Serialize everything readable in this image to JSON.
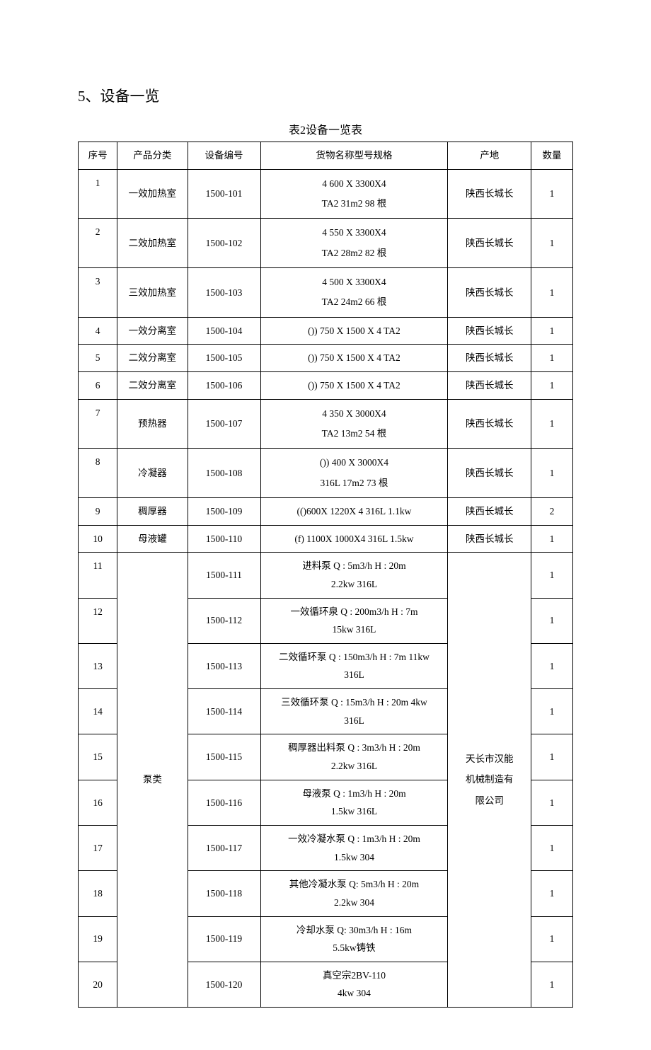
{
  "heading": "5、设备一览",
  "caption": "表2设备一览表",
  "headers": {
    "seq": "序号",
    "category": "产品分类",
    "code": "设备编号",
    "spec": "货物名称型号规格",
    "origin": "产地",
    "qty": "数量"
  },
  "rows": [
    {
      "seq": "1",
      "category": "一效加热室",
      "code": "1500-101",
      "spec_l1": "4 600 X 3300X4",
      "spec_l2": "TA2 31m2 98 根",
      "origin": "陕西长城长",
      "qty": "1",
      "tall": true,
      "seqTop": true
    },
    {
      "seq": "2",
      "category": "二效加热室",
      "code": "1500-102",
      "spec_l1": "4 550 X 3300X4",
      "spec_l2": "TA2 28m2 82 根",
      "origin": "陕西长城长",
      "qty": "1",
      "tall": true,
      "seqTop": true
    },
    {
      "seq": "3",
      "category": "三效加热室",
      "code": "1500-103",
      "spec_l1": "4 500 X 3300X4",
      "spec_l2": "TA2 24m2 66 根",
      "origin": "陕西长城长",
      "qty": "1",
      "tall": true,
      "seqTop": true
    },
    {
      "seq": "4",
      "category": "一效分离室",
      "code": "1500-104",
      "spec_l1": "()) 750 X 1500 X 4 TA2",
      "origin": "陕西长城长",
      "qty": "1"
    },
    {
      "seq": "5",
      "category": "二效分离室",
      "code": "1500-105",
      "spec_l1": "()) 750 X 1500 X 4 TA2",
      "origin": "陕西长城长",
      "qty": "1"
    },
    {
      "seq": "6",
      "category": "二效分离室",
      "code": "1500-106",
      "spec_l1": "()) 750 X 1500 X 4 TA2",
      "origin": "陕西长城长",
      "qty": "1"
    },
    {
      "seq": "7",
      "category": "预热器",
      "code": "1500-107",
      "spec_l1": "4 350 X 3000X4",
      "spec_l2": "TA2 13m2 54 根",
      "origin": "陕西长城长",
      "qty": "1",
      "tall": true,
      "seqTop": true
    },
    {
      "seq": "8",
      "category": "冷凝器",
      "code": "1500-108",
      "spec_l1": "()) 400 X 3000X4",
      "spec_l2": "316L 17m2 73 根",
      "origin": "陕西长城长",
      "qty": "1",
      "tall": true,
      "seqTop": true
    },
    {
      "seq": "9",
      "category": "稠厚器",
      "code": "1500-109",
      "spec_l1": "(()600X 1220X 4 316L 1.1kw",
      "origin": "陕西长城长",
      "qty": "2"
    },
    {
      "seq": "10",
      "category": "母液罐",
      "code": "1500-110",
      "spec_l1": "(f) 1100X 1000X4 316L 1.5kw",
      "origin": "陕西长城长",
      "qty": "1"
    }
  ],
  "pumpCategory": "泵类",
  "pumpOrigin_l1": "天长市汉能",
  "pumpOrigin_l2": "机械制造有",
  "pumpOrigin_l3": "限公司",
  "pumps": [
    {
      "seq": "11",
      "code": "1500-111",
      "spec_l1": "进料泵   Q : 5m3/h H : 20m",
      "spec_l2": "2.2kw 316L",
      "qty": "1",
      "seqTop": true
    },
    {
      "seq": "12",
      "code": "1500-112",
      "spec_l1": "一效循环泉     Q : 200m3/h H : 7m",
      "spec_l2": "15kw 316L",
      "qty": "1",
      "seqTop": true
    },
    {
      "seq": "13",
      "code": "1500-113",
      "spec_l1": "二效循环泵  Q : 150m3/h H : 7m 11kw",
      "spec_l2": "316L",
      "qty": "1"
    },
    {
      "seq": "14",
      "code": "1500-114",
      "spec_l1": "三效循环泵  Q : 15m3/h H : 20m 4kw",
      "spec_l2": "316L",
      "qty": "1"
    },
    {
      "seq": "15",
      "code": "1500-115",
      "spec_l1": "稠厚器出料泵  Q : 3m3/h H : 20m",
      "spec_l2": "2.2kw 316L",
      "qty": "1"
    },
    {
      "seq": "16",
      "code": "1500-116",
      "spec_l1": "母液泵  Q : 1m3/h H : 20m",
      "spec_l2": "1.5kw 316L",
      "qty": "1"
    },
    {
      "seq": "17",
      "code": "1500-117",
      "spec_l1": "一效冷凝水泵  Q : 1m3/h H : 20m",
      "spec_l2": "1.5kw 304",
      "qty": "1"
    },
    {
      "seq": "18",
      "code": "1500-118",
      "spec_l1": "其他冷凝水泵  Q: 5m3/h H : 20m",
      "spec_l2": "2.2kw 304",
      "qty": "1"
    },
    {
      "seq": "19",
      "code": "1500-119",
      "spec_l1": "冷却水泵  Q: 30m3/h H : 16m",
      "spec_l2": "5.5kw铸铁",
      "qty": "1"
    },
    {
      "seq": "20",
      "code": "1500-120",
      "spec_l1": "真空宗2BV-110",
      "spec_l2": "4kw 304",
      "qty": "1"
    }
  ]
}
